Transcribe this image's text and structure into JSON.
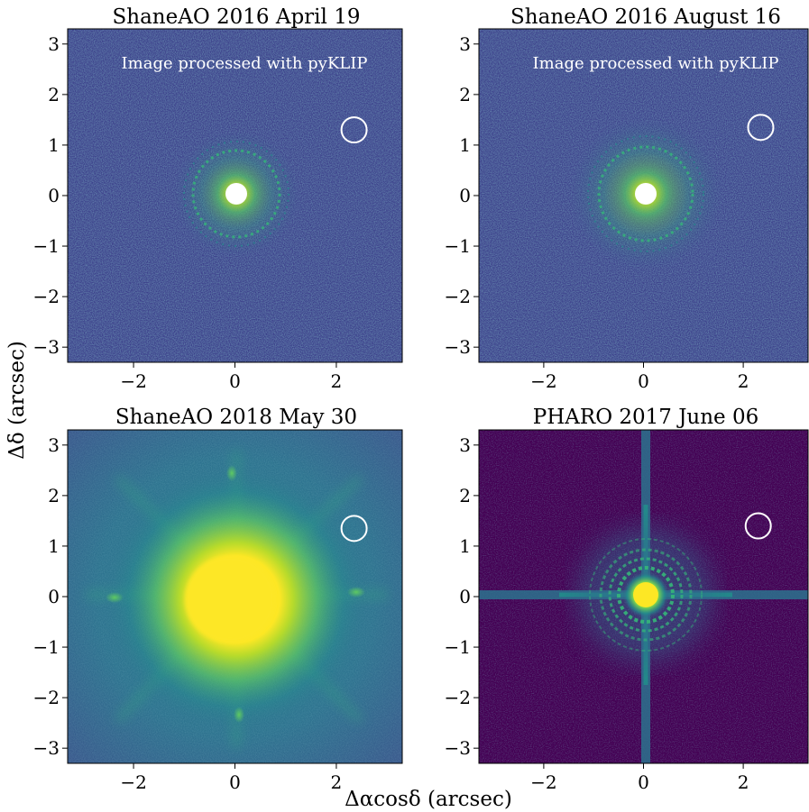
{
  "figure": {
    "xlabel": "Δαcosδ (arcsec)",
    "ylabel": "Δδ (arcsec)"
  },
  "colors": {
    "background": "#440154",
    "mid": "#31688e",
    "teal": "#21918c",
    "green": "#5ec962",
    "bright": "#fde725",
    "circle": "#ffffff"
  },
  "chart_data": [
    {
      "type": "heatmap",
      "title": "ShaneAO 2016 April 19",
      "annotation": "Image processed with pyKLIP",
      "colormap": "viridis",
      "xlim": [
        -3.3,
        3.3
      ],
      "ylim": [
        -3.3,
        3.3
      ],
      "xticks": [
        -2,
        0,
        2
      ],
      "yticks": [
        -3,
        -2,
        -1,
        0,
        1,
        2,
        3
      ],
      "companion_circle": {
        "x": 2.35,
        "y": 1.3
      },
      "central_mask": true
    },
    {
      "type": "heatmap",
      "title": "ShaneAO 2016 August 16",
      "annotation": "Image processed with pyKLIP",
      "colormap": "viridis",
      "xlim": [
        -3.3,
        3.3
      ],
      "ylim": [
        -3.3,
        3.3
      ],
      "xticks": [
        -2,
        0,
        2
      ],
      "yticks": [
        -3,
        -2,
        -1,
        0,
        1,
        2,
        3
      ],
      "companion_circle": {
        "x": 2.35,
        "y": 1.35
      },
      "central_mask": true
    },
    {
      "type": "heatmap",
      "title": "ShaneAO 2018 May 30",
      "annotation": "",
      "colormap": "viridis",
      "xlim": [
        -3.3,
        3.3
      ],
      "ylim": [
        -3.3,
        3.3
      ],
      "xticks": [
        -2,
        0,
        2
      ],
      "yticks": [
        -3,
        -2,
        -1,
        0,
        1,
        2,
        3
      ],
      "companion_circle": {
        "x": 2.35,
        "y": 1.35
      },
      "central_mask": false
    },
    {
      "type": "heatmap",
      "title": "PHARO 2017 June 06",
      "annotation": "",
      "colormap": "viridis",
      "xlim": [
        -3.3,
        3.3
      ],
      "ylim": [
        -3.3,
        3.3
      ],
      "xticks": [
        -2,
        0,
        2
      ],
      "yticks": [
        -3,
        -2,
        -1,
        0,
        1,
        2,
        3
      ],
      "companion_circle": {
        "x": 2.3,
        "y": 1.4
      },
      "central_mask": false
    }
  ]
}
